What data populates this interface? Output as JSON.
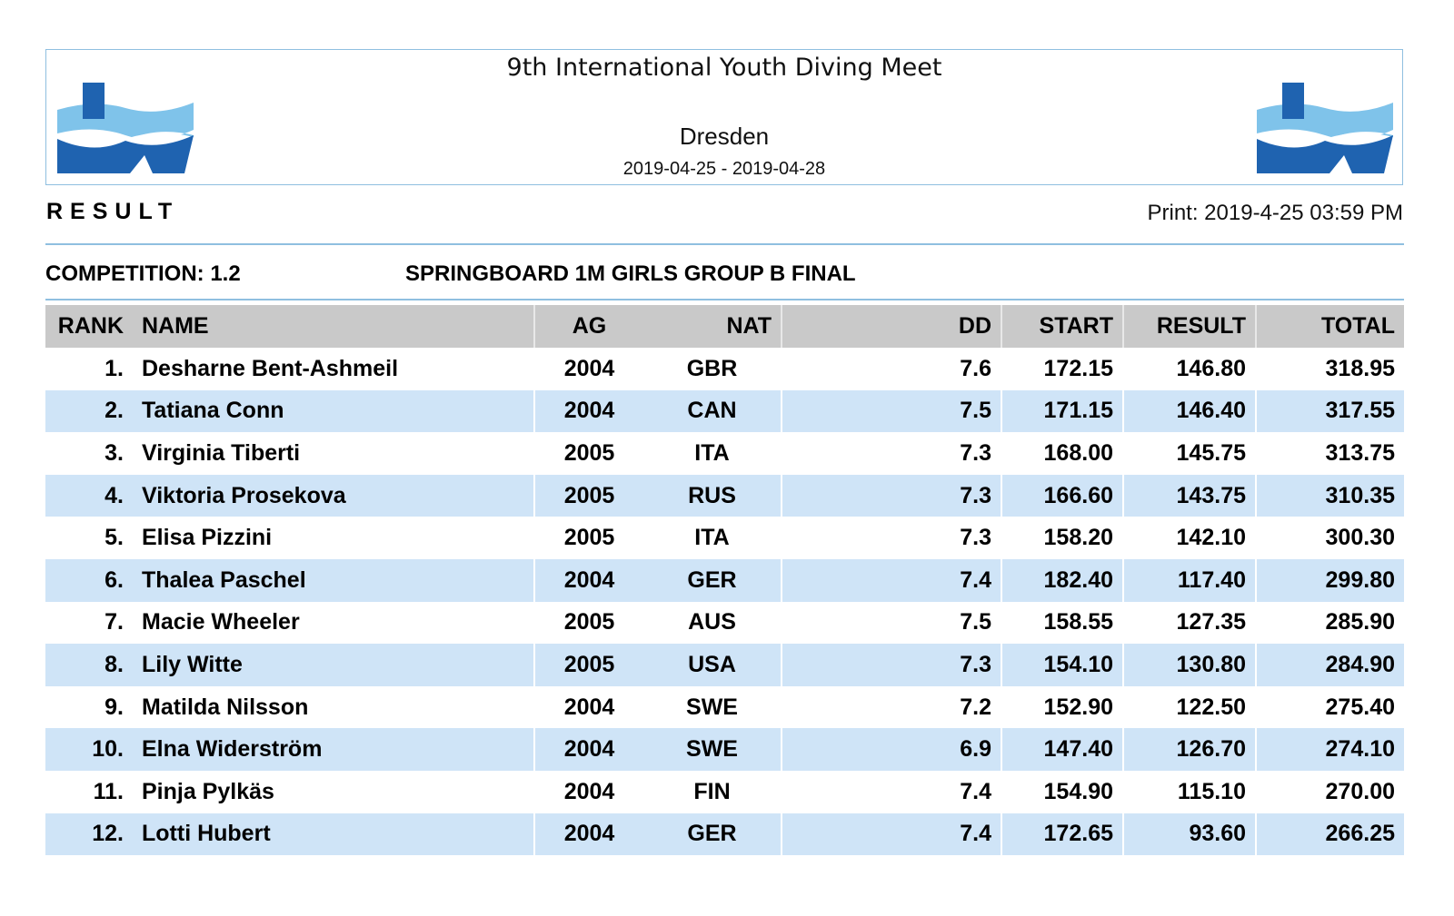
{
  "header": {
    "meet_title": "9th International Youth Diving Meet",
    "city": "Dresden",
    "dates": "2019-04-25 - 2019-04-28",
    "logo_icon": "dsv-logo-icon"
  },
  "report": {
    "result_label": "RESULT",
    "print_info": "Print: 2019-4-25 03:59 PM"
  },
  "competition": {
    "label": "COMPETITION: 1.2",
    "title": "SPRINGBOARD 1M GIRLS GROUP B FINAL"
  },
  "colors": {
    "row_alt": "#cfe4f7",
    "header_bg": "#c9c9c9",
    "rule": "#8fbfe0",
    "logo_dark": "#1f63b0",
    "logo_light": "#7fc3ea"
  },
  "table": {
    "columns": [
      "RANK",
      "NAME",
      "AG",
      "NAT",
      "DD",
      "START",
      "RESULT",
      "TOTAL"
    ],
    "rows": [
      {
        "rank": "1.",
        "name": "Desharne Bent-Ashmeil",
        "ag": "2004",
        "nat": "GBR",
        "dd": "7.6",
        "start": "172.15",
        "result": "146.80",
        "total": "318.95"
      },
      {
        "rank": "2.",
        "name": "Tatiana Conn",
        "ag": "2004",
        "nat": "CAN",
        "dd": "7.5",
        "start": "171.15",
        "result": "146.40",
        "total": "317.55"
      },
      {
        "rank": "3.",
        "name": "Virginia Tiberti",
        "ag": "2005",
        "nat": "ITA",
        "dd": "7.3",
        "start": "168.00",
        "result": "145.75",
        "total": "313.75"
      },
      {
        "rank": "4.",
        "name": "Viktoria Prosekova",
        "ag": "2005",
        "nat": "RUS",
        "dd": "7.3",
        "start": "166.60",
        "result": "143.75",
        "total": "310.35"
      },
      {
        "rank": "5.",
        "name": "Elisa Pizzini",
        "ag": "2005",
        "nat": "ITA",
        "dd": "7.3",
        "start": "158.20",
        "result": "142.10",
        "total": "300.30"
      },
      {
        "rank": "6.",
        "name": "Thalea Paschel",
        "ag": "2004",
        "nat": "GER",
        "dd": "7.4",
        "start": "182.40",
        "result": "117.40",
        "total": "299.80"
      },
      {
        "rank": "7.",
        "name": "Macie Wheeler",
        "ag": "2005",
        "nat": "AUS",
        "dd": "7.5",
        "start": "158.55",
        "result": "127.35",
        "total": "285.90"
      },
      {
        "rank": "8.",
        "name": "Lily Witte",
        "ag": "2005",
        "nat": "USA",
        "dd": "7.3",
        "start": "154.10",
        "result": "130.80",
        "total": "284.90"
      },
      {
        "rank": "9.",
        "name": "Matilda Nilsson",
        "ag": "2004",
        "nat": "SWE",
        "dd": "7.2",
        "start": "152.90",
        "result": "122.50",
        "total": "275.40"
      },
      {
        "rank": "10.",
        "name": "Elna Widerström",
        "ag": "2004",
        "nat": "SWE",
        "dd": "6.9",
        "start": "147.40",
        "result": "126.70",
        "total": "274.10"
      },
      {
        "rank": "11.",
        "name": "Pinja Pylkäs",
        "ag": "2004",
        "nat": "FIN",
        "dd": "7.4",
        "start": "154.90",
        "result": "115.10",
        "total": "270.00"
      },
      {
        "rank": "12.",
        "name": "Lotti Hubert",
        "ag": "2004",
        "nat": "GER",
        "dd": "7.4",
        "start": "172.65",
        "result": "93.60",
        "total": "266.25"
      }
    ]
  }
}
